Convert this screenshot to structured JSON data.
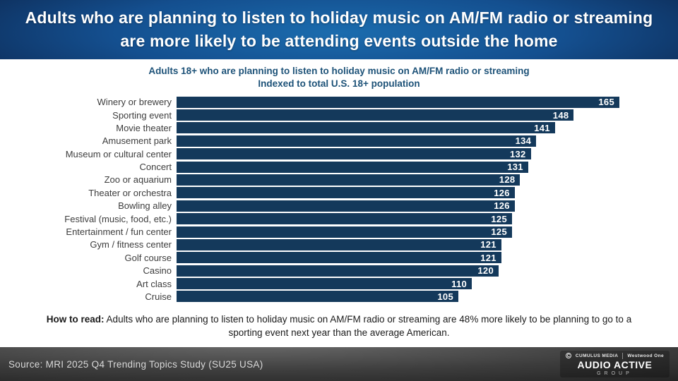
{
  "header": {
    "title": "Adults who are planning to listen to holiday music on AM/FM radio or streaming are more likely to be attending events outside the home"
  },
  "chart_data": {
    "type": "bar",
    "orientation": "horizontal",
    "title": "Adults 18+ who are planning to listen to holiday music on AM/FM radio or streaming",
    "subtitle": "Indexed to total U.S. 18+ population",
    "categories": [
      "Winery or brewery",
      "Sporting event",
      "Movie theater",
      "Amusement park",
      "Museum or cultural center",
      "Concert",
      "Zoo or aquarium",
      "Theater or orchestra",
      "Bowling alley",
      "Festival (music, food, etc.)",
      "Entertainment / fun center",
      "Gym / fitness center",
      "Golf course",
      "Casino",
      "Art class",
      "Cruise"
    ],
    "values": [
      165,
      148,
      141,
      134,
      132,
      131,
      128,
      126,
      126,
      125,
      125,
      121,
      121,
      120,
      110,
      105
    ],
    "xlim": [
      0,
      165
    ],
    "grid": false,
    "legend": false,
    "bar_color": "#14395B",
    "value_label_color": "#FFFFFF"
  },
  "how_to_read": {
    "label": "How to read:",
    "text": " Adults who are planning to listen to holiday music on AM/FM radio or streaming are 48% more likely to be planning to go to a sporting event next year than the average American."
  },
  "footer": {
    "source": "Source: MRI 2025 Q4 Trending Topics Study (SU25 USA)",
    "logos": {
      "cumulus_icon": "C",
      "cumulus": "CUMULUS MEDIA",
      "westwood": "Westwood One",
      "brand_line1": "AUDIO ACTIVE",
      "brand_line2": "GROUP"
    }
  },
  "colors": {
    "header_center": "#1b6cae",
    "header_edge": "#0a1c3e",
    "title_text": "#1d5278",
    "bar": "#14395B",
    "footer_text": "#d9d9d9"
  }
}
